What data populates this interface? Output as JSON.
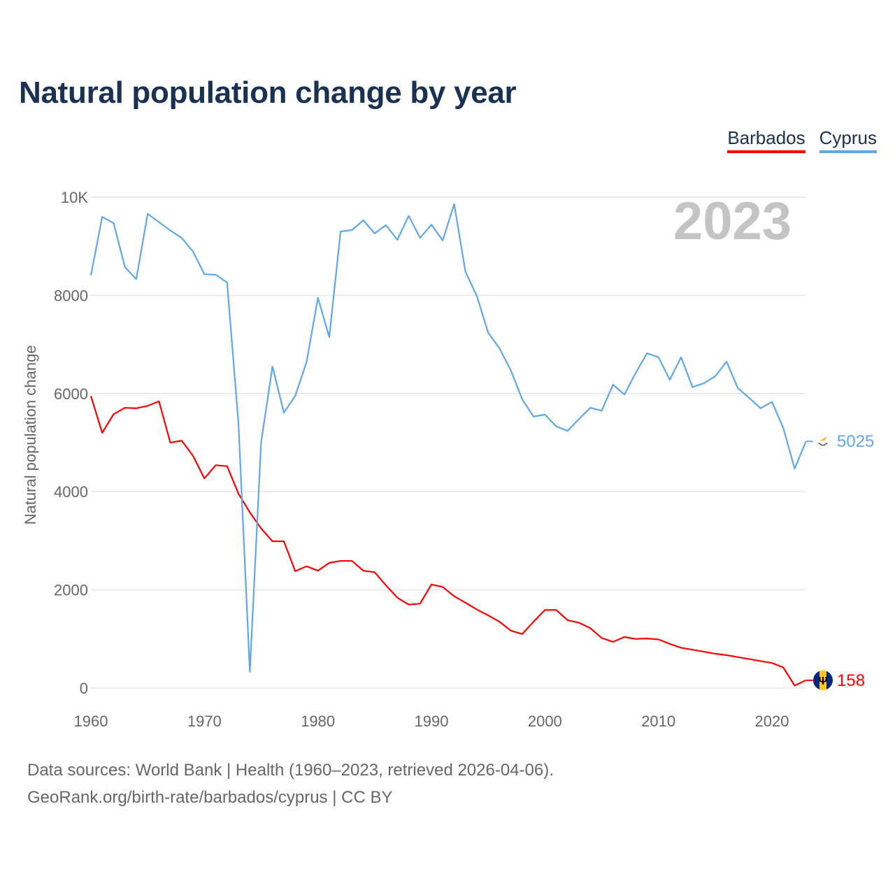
{
  "title": "Natural population change by year",
  "legend": [
    {
      "label": "Barbados",
      "color": "#ff0000"
    },
    {
      "label": "Cyprus",
      "color": "#5ea7ea"
    }
  ],
  "footer": {
    "line1": "Data sources: World Bank | Health (1960–2023, retrieved 2026-04-06).",
    "line2": "GeoRank.org/birth-rate/barbados/cyprus | CC BY"
  },
  "chart_data": {
    "type": "line",
    "title": "Natural population change by year",
    "xlabel": "",
    "ylabel": "Natural population change",
    "xlim": [
      1960,
      2023
    ],
    "ylim": [
      0,
      10000
    ],
    "x_ticks": [
      "1960",
      "1970",
      "1980",
      "1990",
      "2000",
      "2010",
      "2020"
    ],
    "y_ticks": [
      "0",
      "2000",
      "4000",
      "6000",
      "8000",
      "10K"
    ],
    "grid": true,
    "legend_position": "top-right",
    "year_watermark": "2023",
    "x": [
      1960,
      1961,
      1962,
      1963,
      1964,
      1965,
      1966,
      1967,
      1968,
      1969,
      1970,
      1971,
      1972,
      1973,
      1974,
      1975,
      1976,
      1977,
      1978,
      1979,
      1980,
      1981,
      1982,
      1983,
      1984,
      1985,
      1986,
      1987,
      1988,
      1989,
      1990,
      1991,
      1992,
      1993,
      1994,
      1995,
      1996,
      1997,
      1998,
      1999,
      2000,
      2001,
      2002,
      2003,
      2004,
      2005,
      2006,
      2007,
      2008,
      2009,
      2010,
      2011,
      2012,
      2013,
      2014,
      2015,
      2016,
      2017,
      2018,
      2019,
      2020,
      2021,
      2022,
      2023
    ],
    "series": [
      {
        "name": "Barbados",
        "color": "#ff0000",
        "end_label": "158",
        "flag": "barbados-flag",
        "values": [
          5950,
          5200,
          5580,
          5710,
          5700,
          5750,
          5840,
          5000,
          5040,
          4730,
          4270,
          4540,
          4520,
          3960,
          3580,
          3250,
          2990,
          2990,
          2380,
          2480,
          2390,
          2550,
          2590,
          2590,
          2390,
          2360,
          2090,
          1840,
          1700,
          1720,
          2110,
          2060,
          1870,
          1740,
          1600,
          1480,
          1350,
          1170,
          1100,
          1350,
          1590,
          1590,
          1380,
          1330,
          1220,
          1020,
          940,
          1040,
          1000,
          1010,
          990,
          900,
          820,
          780,
          740,
          700,
          670,
          630,
          590,
          550,
          510,
          420,
          50,
          158
        ]
      },
      {
        "name": "Cyprus",
        "color": "#5ea7ea",
        "end_label": "5025",
        "flag": "cyprus-flag",
        "values": [
          8405,
          9600,
          9470,
          8575,
          8330,
          9660,
          9490,
          9320,
          9170,
          8890,
          8430,
          8420,
          8260,
          5400,
          330,
          5010,
          6550,
          5610,
          5950,
          6640,
          7950,
          7150,
          9300,
          9330,
          9530,
          9260,
          9430,
          9130,
          9620,
          9170,
          9440,
          9120,
          9860,
          8480,
          7990,
          7240,
          6920,
          6470,
          5880,
          5530,
          5570,
          5330,
          5240,
          5480,
          5710,
          5650,
          6180,
          5980,
          6420,
          6820,
          6740,
          6280,
          6740,
          6130,
          6210,
          6350,
          6650,
          6110,
          5910,
          5700,
          5830,
          5300,
          4470,
          5025
        ]
      }
    ]
  }
}
